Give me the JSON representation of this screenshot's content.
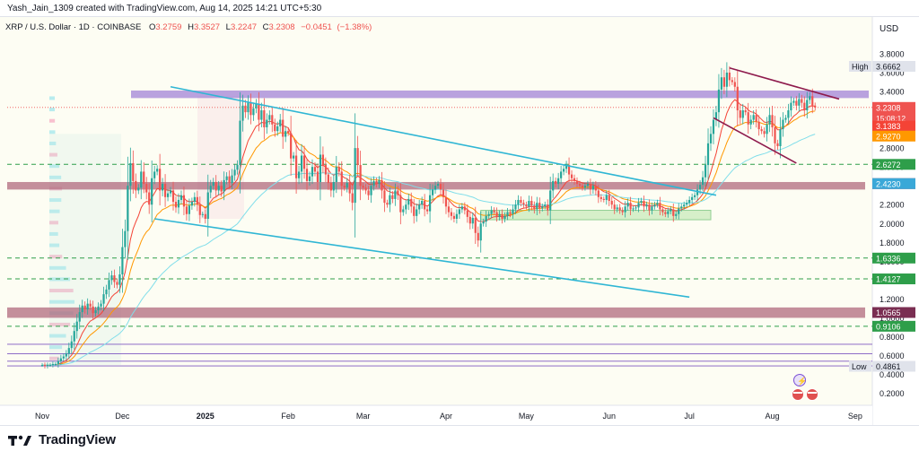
{
  "header": {
    "publisher": "Yash_Jain_1309 created with TradingView.com, Aug 14, 2025 14:21 UTC+5:30"
  },
  "brand": {
    "name": "TradingView"
  },
  "colors": {
    "up": "#26a69a",
    "down": "#ef5350",
    "channel": "#2fb6d4",
    "zone": "#a78bd8",
    "flag": "#8e1a4c",
    "ema_fast": "#f44336",
    "ema_mid": "#ff9800",
    "ema_slow": "#80deea",
    "green_level": "#2e9e4a",
    "dark_zone": "#b06a7e"
  },
  "chart_data": {
    "type": "candlestick",
    "title": "XRP / U.S. Dollar · 1D · COINBASE",
    "ohlc": {
      "o_label": "O",
      "o": "3.2759",
      "h_label": "H",
      "h": "3.3527",
      "l_label": "L",
      "l": "3.2247",
      "c_label": "C",
      "c": "3.2308",
      "chg": "−0.0451",
      "chg_pct": "(−1.38%)"
    },
    "currency": "USD",
    "ylim": [
      0.12,
      3.98
    ],
    "y_ticks": [
      3.8,
      3.6,
      3.4,
      3.2,
      3.0,
      2.8,
      2.6,
      2.4,
      2.2,
      2.0,
      1.8,
      1.6,
      1.4,
      1.2,
      1.0,
      0.8,
      0.6,
      0.4,
      0.2
    ],
    "x_ticks": [
      {
        "label": "Nov",
        "day": 0
      },
      {
        "label": "Dec",
        "day": 30
      },
      {
        "label": "2025",
        "day": 61
      },
      {
        "label": "Feb",
        "day": 92
      },
      {
        "label": "Mar",
        "day": 120
      },
      {
        "label": "Apr",
        "day": 151
      },
      {
        "label": "May",
        "day": 181
      },
      {
        "label": "Jun",
        "day": 212
      },
      {
        "label": "Jul",
        "day": 242
      },
      {
        "label": "Aug",
        "day": 273
      },
      {
        "label": "Sep",
        "day": 304
      }
    ],
    "horizontal_levels": [
      {
        "value": 2.6272,
        "label": "2.6272",
        "style": "green-dashed"
      },
      {
        "value": 1.6336,
        "label": "1.6336",
        "style": "green-dashed"
      },
      {
        "value": 1.4127,
        "label": "1.4127",
        "style": "green-dashed"
      },
      {
        "value": 0.9106,
        "label": "0.9106",
        "style": "green-dashed"
      },
      {
        "value": 1.0565,
        "label": "1.0565",
        "style": "zone"
      },
      {
        "value": 2.423,
        "label": "2.4230",
        "style": "zone"
      },
      {
        "value": 0.72,
        "label": "",
        "style": "purple"
      },
      {
        "value": 0.62,
        "label": "",
        "style": "purple"
      },
      {
        "value": 0.54,
        "label": "",
        "style": "purple"
      },
      {
        "value": 0.49,
        "label": "",
        "style": "purple"
      }
    ],
    "zones": [
      {
        "from": 3.33,
        "to": 3.41,
        "role": "resistance"
      },
      {
        "from": 2.36,
        "to": 2.44,
        "role": "support-resistance"
      },
      {
        "from": 1.0,
        "to": 1.11,
        "role": "support"
      }
    ],
    "price_labels": [
      {
        "value": 3.6662,
        "label": "3.6662",
        "caption": "High",
        "kind": "high"
      },
      {
        "value": 3.2308,
        "label": "3.2308",
        "caption": "15:08:12",
        "kind": "last"
      },
      {
        "value": 3.1383,
        "label": "3.1383",
        "caption": "",
        "kind": "ema-fast"
      },
      {
        "value": 2.927,
        "label": "2.9270",
        "caption": "",
        "kind": "ema-mid"
      },
      {
        "value": 2.423,
        "label": "2.4230",
        "caption": "",
        "kind": "ema-slow"
      },
      {
        "value": 0.4861,
        "label": "0.4861",
        "caption": "Low",
        "kind": "low"
      }
    ],
    "trendlines": [
      {
        "name": "channel-upper",
        "from": [
          48,
          3.45
        ],
        "to": [
          252,
          2.3
        ]
      },
      {
        "name": "channel-lower",
        "from": [
          42,
          2.05
        ],
        "to": [
          242,
          1.22
        ]
      },
      {
        "name": "flag-upper",
        "from": [
          257,
          3.65
        ],
        "to": [
          298,
          3.32
        ]
      },
      {
        "name": "flag-lower",
        "from": [
          251,
          3.12
        ],
        "to": [
          282,
          2.64
        ]
      }
    ],
    "consolidation_box": {
      "from_day": 164,
      "to_day": 250,
      "low": 2.04,
      "high": 2.14
    },
    "closes": [
      0.5,
      0.49,
      0.5,
      0.5,
      0.51,
      0.51,
      0.54,
      0.57,
      0.59,
      0.62,
      0.68,
      0.75,
      0.86,
      0.96,
      1.06,
      1.13,
      1.09,
      1.15,
      1.12,
      1.05,
      1.08,
      1.12,
      1.15,
      1.25,
      1.3,
      1.4,
      1.45,
      1.38,
      1.35,
      1.46,
      1.75,
      1.92,
      2.4,
      2.64,
      2.45,
      2.35,
      2.38,
      2.55,
      2.42,
      2.33,
      2.2,
      2.48,
      2.55,
      2.58,
      2.35,
      2.42,
      2.28,
      2.32,
      2.35,
      2.23,
      2.17,
      2.25,
      2.3,
      2.18,
      2.1,
      2.19,
      2.23,
      2.28,
      2.2,
      2.09,
      2.1,
      2.05,
      2.33,
      2.4,
      2.44,
      2.35,
      2.4,
      2.34,
      2.46,
      2.5,
      2.43,
      2.51,
      2.57,
      2.62,
      3.09,
      3.25,
      3.18,
      3.28,
      3.15,
      3.22,
      3.27,
      3.1,
      3.2,
      3.02,
      3.1,
      3.15,
      3.05,
      2.98,
      3.03,
      3.1,
      2.92,
      2.98,
      2.96,
      2.69,
      2.72,
      2.48,
      2.55,
      2.72,
      2.58,
      2.45,
      2.5,
      2.6,
      2.55,
      2.44,
      2.73,
      2.62,
      2.52,
      2.43,
      2.35,
      2.44,
      2.6,
      2.55,
      2.4,
      2.38,
      2.43,
      2.32,
      2.22,
      2.8,
      2.62,
      2.4,
      2.38,
      2.35,
      2.3,
      2.4,
      2.45,
      2.42,
      2.46,
      2.35,
      2.22,
      2.2,
      2.3,
      2.26,
      2.35,
      2.3,
      2.12,
      2.15,
      2.2,
      2.26,
      2.18,
      2.08,
      2.15,
      2.2,
      2.24,
      2.15,
      2.13,
      2.3,
      2.36,
      2.4,
      2.42,
      2.36,
      2.28,
      2.18,
      2.12,
      2.08,
      2.05,
      2.1,
      2.15,
      2.18,
      2.14,
      2.07,
      2.0,
      2.06,
      1.9,
      1.82,
      2.0,
      2.02,
      2.08,
      2.1,
      2.14,
      2.12,
      2.07,
      2.1,
      2.05,
      2.08,
      2.12,
      2.1,
      2.15,
      2.2,
      2.25,
      2.22,
      2.2,
      2.18,
      2.24,
      2.19,
      2.15,
      2.22,
      2.16,
      2.18,
      2.2,
      2.14,
      2.35,
      2.45,
      2.42,
      2.48,
      2.55,
      2.58,
      2.62,
      2.52,
      2.48,
      2.45,
      2.42,
      2.4,
      2.38,
      2.4,
      2.42,
      2.36,
      2.4,
      2.35,
      2.28,
      2.26,
      2.25,
      2.3,
      2.24,
      2.2,
      2.15,
      2.17,
      2.14,
      2.12,
      2.18,
      2.22,
      2.15,
      2.16,
      2.17,
      2.22,
      2.24,
      2.18,
      2.2,
      2.14,
      2.18,
      2.2,
      2.22,
      2.15,
      2.12,
      2.1,
      2.13,
      2.15,
      2.08,
      2.1,
      2.16,
      2.18,
      2.2,
      2.22,
      2.25,
      2.28,
      2.3,
      2.36,
      2.41,
      2.49,
      2.62,
      2.85,
      2.95,
      3.1,
      3.18,
      3.42,
      3.55,
      3.45,
      3.6,
      3.52,
      3.5,
      3.45,
      3.2,
      3.12,
      3.2,
      3.18,
      3.05,
      3.1,
      3.15,
      3.08,
      3.0,
      2.98,
      2.95,
      3.05,
      3.15,
      3.02,
      2.85,
      2.82,
      3.0,
      3.1,
      3.12,
      3.2,
      3.28,
      3.3,
      3.25,
      3.32,
      3.28,
      3.2,
      3.31,
      3.35,
      3.25,
      3.23
    ]
  }
}
